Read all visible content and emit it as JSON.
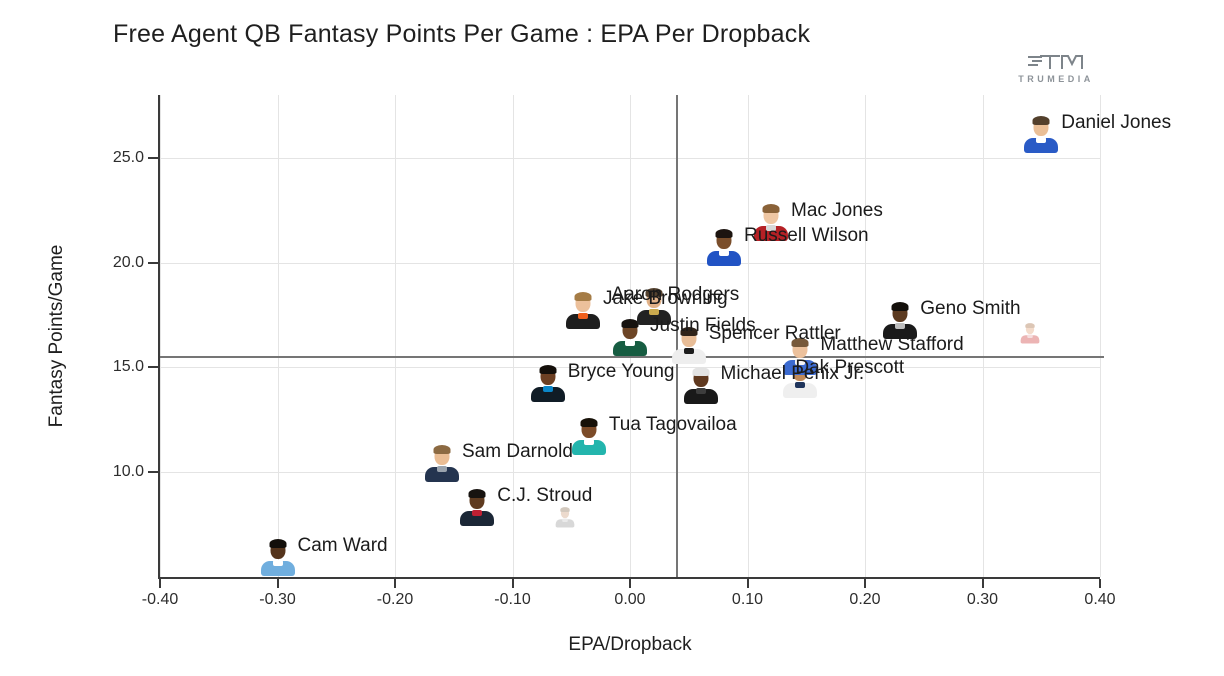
{
  "title": "Free Agent QB Fantasy Points Per Game : EPA Per Dropback",
  "logo": {
    "brand": "TRUMEDIA"
  },
  "colors": {
    "background": "#ffffff",
    "grid": "#e4e4e4",
    "reference_line": "#757575",
    "axis": "#3a3a3a",
    "title_text": "#1f1f1f",
    "tick_text": "#2d2d2d",
    "point_label_text": "#1b1b1b"
  },
  "chart_data": {
    "type": "scatter",
    "title": "Free Agent QB Fantasy Points Per Game : EPA Per Dropback",
    "xlabel": "EPA/Dropback",
    "ylabel": "Fantasy Points/Game",
    "xlim": [
      -0.4,
      0.4
    ],
    "ylim": [
      5,
      28
    ],
    "grid": true,
    "x_ticks": [
      {
        "value": -0.4,
        "label": "-0.40"
      },
      {
        "value": -0.3,
        "label": "-0.30"
      },
      {
        "value": -0.2,
        "label": "-0.20"
      },
      {
        "value": -0.1,
        "label": "-0.10"
      },
      {
        "value": 0.0,
        "label": "0.00"
      },
      {
        "value": 0.1,
        "label": "0.10"
      },
      {
        "value": 0.2,
        "label": "0.20"
      },
      {
        "value": 0.3,
        "label": "0.30"
      },
      {
        "value": 0.4,
        "label": "0.40"
      }
    ],
    "y_ticks": [
      {
        "value": 10,
        "label": "10.0"
      },
      {
        "value": 15,
        "label": "15.0"
      },
      {
        "value": 20,
        "label": "20.0"
      },
      {
        "value": 25,
        "label": "25.0"
      }
    ],
    "reference_lines": {
      "x": 0.04,
      "y": 15.5
    },
    "points": [
      {
        "name": "Cam Ward",
        "epa": -0.3,
        "fpg": 5.9,
        "jersey": "#70aede",
        "collar": "#ffffff",
        "skin": "#55341c",
        "hair": "#130f0b"
      },
      {
        "name": "C.J. Stroud",
        "epa": -0.13,
        "fpg": 8.3,
        "jersey": "#1b2736",
        "collar": "#bf2033",
        "skin": "#5f3b20",
        "hair": "#171310"
      },
      {
        "name": "",
        "epa": -0.055,
        "fpg": 7.8,
        "jersey": "#d4d4d4",
        "collar": "#e8e8e8",
        "skin": "#ead7c8",
        "hair": "#cfc4b8",
        "small": true,
        "opacity": 0.9
      },
      {
        "name": "Sam Darnold",
        "epa": -0.16,
        "fpg": 10.4,
        "jersey": "#24344f",
        "collar": "#9aa3ad",
        "skin": "#eabd94",
        "hair": "#8c6a42"
      },
      {
        "name": "Tua Tagovailoa",
        "epa": -0.035,
        "fpg": 11.7,
        "jersey": "#23b5ad",
        "collar": "#ffffff",
        "skin": "#7c4b28",
        "hair": "#171108"
      },
      {
        "name": "Bryce Young",
        "epa": -0.07,
        "fpg": 14.2,
        "jersey": "#101c26",
        "collar": "#0b87c9",
        "skin": "#6d4023",
        "hair": "#15100b"
      },
      {
        "name": "Michael Penix Jr.",
        "epa": 0.06,
        "fpg": 14.1,
        "jersey": "#191919",
        "collar": "#3d3d3d",
        "skin": "#60391f",
        "hair": "#e3e3e3"
      },
      {
        "name": "Dak Prescott",
        "epa": 0.145,
        "fpg": 14.4,
        "jersey": "#efefef",
        "collar": "#20355c",
        "skin": "#c08a5a",
        "hair": "#17110c",
        "label_dx": -25
      },
      {
        "name": "Matthew Stafford",
        "epa": 0.145,
        "fpg": 15.5,
        "jersey": "#3b6ad0",
        "collar": "#f5f5f5",
        "skin": "#ecc19c",
        "hair": "#77593a"
      },
      {
        "name": "Spencer Rattler",
        "epa": 0.05,
        "fpg": 16.0,
        "jersey": "#eeeeee",
        "collar": "#1c1c1c",
        "skin": "#e8bd97",
        "hair": "#30241a"
      },
      {
        "name": "Justin Fields",
        "epa": 0.0,
        "fpg": 16.4,
        "jersey": "#175d42",
        "collar": "#ffffff",
        "skin": "#6d4526",
        "hair": "#171310"
      },
      {
        "name": "",
        "epa": 0.34,
        "fpg": 16.6,
        "jersey": "#eaacac",
        "collar": "#f5dcdc",
        "skin": "#f2d8c6",
        "hair": "#d9c0ae",
        "small": true,
        "opacity": 0.9
      },
      {
        "name": "Geno Smith",
        "epa": 0.23,
        "fpg": 17.2,
        "jersey": "#1a1a1a",
        "collar": "#bdbdbd",
        "skin": "#5c3a20",
        "hair": "#14100c"
      },
      {
        "name": "Jake Browning",
        "epa": -0.04,
        "fpg": 17.7,
        "jersey": "#1e1e1e",
        "collar": "#f0601d",
        "skin": "#ecc09b",
        "hair": "#a57c46"
      },
      {
        "name": "Aaron Rodgers",
        "epa": 0.02,
        "fpg": 17.9,
        "jersey": "#222222",
        "collar": "#caa94e",
        "skin": "#e2b288",
        "hair": "#54422f",
        "label_dx": -62
      },
      {
        "name": "Russell Wilson",
        "epa": 0.08,
        "fpg": 20.7,
        "jersey": "#2153c4",
        "collar": "#ffffff",
        "skin": "#7a4e2b",
        "hair": "#1c1410"
      },
      {
        "name": "Mac Jones",
        "epa": 0.12,
        "fpg": 21.9,
        "jersey": "#b52025",
        "collar": "#d8d8d8",
        "skin": "#efc6a2",
        "hair": "#8a6238"
      },
      {
        "name": "Daniel Jones",
        "epa": 0.35,
        "fpg": 26.1,
        "jersey": "#2a5bc6",
        "collar": "#ffffff",
        "skin": "#eabf97",
        "hair": "#53402c"
      }
    ]
  }
}
